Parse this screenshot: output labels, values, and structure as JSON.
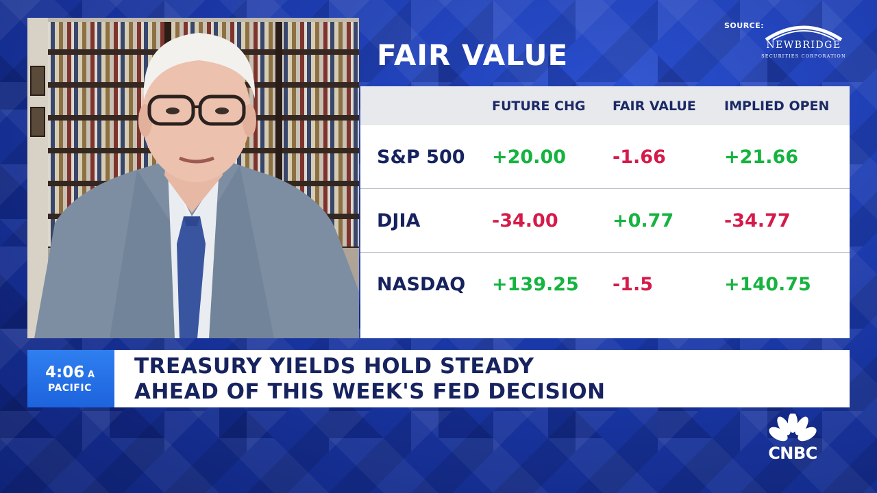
{
  "panel": {
    "title": "FAIR VALUE",
    "headers": {
      "future_chg": "FUTURE CHG",
      "fair_value": "FAIR VALUE",
      "implied_open": "IMPLIED OPEN"
    },
    "rows": [
      {
        "index": "S&P 500",
        "future_chg": "+20.00",
        "fair_value": "-1.66",
        "implied_open": "+21.66"
      },
      {
        "index": "DJIA",
        "future_chg": "-34.00",
        "fair_value": "+0.77",
        "implied_open": "-34.77"
      },
      {
        "index": "NASDAQ",
        "future_chg": "+139.25",
        "fair_value": "-1.5",
        "implied_open": "+140.75"
      }
    ]
  },
  "source": {
    "label": "SOURCE:",
    "logo_name": "NEWBRIDGE",
    "logo_sub": "SECURITIES CORPORATION"
  },
  "lower_third": {
    "time": "4:06",
    "time_suffix": "A",
    "timezone": "PACIFIC",
    "headline_line1": "TREASURY YIELDS HOLD STEADY",
    "headline_line2": "AHEAD OF THIS WEEK'S FED DECISION"
  },
  "network": {
    "name": "CNBC",
    "logo_icon": "peacock-icon"
  },
  "colors": {
    "positive": "#15b340",
    "negative": "#d51a49",
    "navy_text": "#16235e",
    "time_box_blue": "#1d63dd",
    "background_blue": "#1a38a8"
  }
}
